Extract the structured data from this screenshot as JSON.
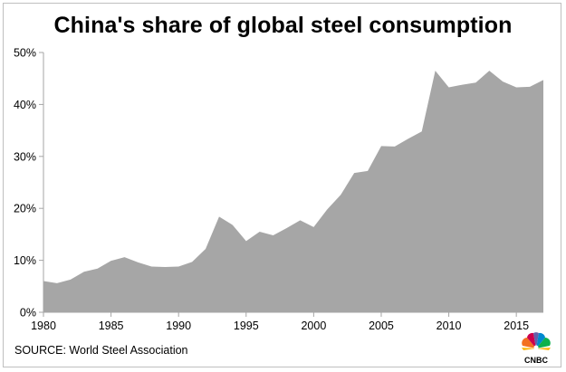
{
  "title": "China's share of global steel consumption",
  "source": "SOURCE: World Steel Association",
  "logo_text": "CNBC",
  "chart_data": {
    "type": "area",
    "title": "China's share of global steel consumption",
    "xlabel": "",
    "ylabel": "",
    "x": [
      1980,
      1981,
      1982,
      1983,
      1984,
      1985,
      1986,
      1987,
      1988,
      1989,
      1990,
      1991,
      1992,
      1993,
      1994,
      1995,
      1996,
      1997,
      1998,
      1999,
      2000,
      2001,
      2002,
      2003,
      2004,
      2005,
      2006,
      2007,
      2008,
      2009,
      2010,
      2011,
      2012,
      2013,
      2014,
      2015,
      2016,
      2017
    ],
    "series": [
      {
        "values": [
          6.0,
          5.6,
          6.3,
          7.8,
          8.4,
          9.9,
          10.6,
          9.6,
          8.8,
          8.7,
          8.8,
          9.7,
          12.2,
          18.4,
          16.8,
          13.7,
          15.5,
          14.8,
          16.2,
          17.7,
          16.4,
          19.8,
          22.6,
          26.8,
          27.2,
          32.0,
          31.9,
          33.4,
          34.8,
          46.5,
          43.3,
          43.8,
          44.2,
          46.5,
          44.4,
          43.3,
          43.4,
          44.7
        ],
        "color": "#a6a6a6"
      }
    ],
    "xlim": [
      1980,
      2017
    ],
    "ylim": [
      0,
      50
    ],
    "x_ticks": [
      1980,
      1985,
      1990,
      1995,
      2000,
      2005,
      2010,
      2015
    ],
    "x_tick_labels": [
      "1980",
      "1985",
      "1990",
      "1995",
      "2000",
      "2005",
      "2010",
      "2015"
    ],
    "y_ticks": [
      0,
      10,
      20,
      30,
      40,
      50
    ],
    "y_tick_labels": [
      "0%",
      "10%",
      "20%",
      "30%",
      "40%",
      "50%"
    ],
    "grid": false,
    "legend": "none",
    "colors": {
      "area": "#a6a6a6",
      "axis": "#a6a6a6",
      "text": "#000000"
    }
  }
}
